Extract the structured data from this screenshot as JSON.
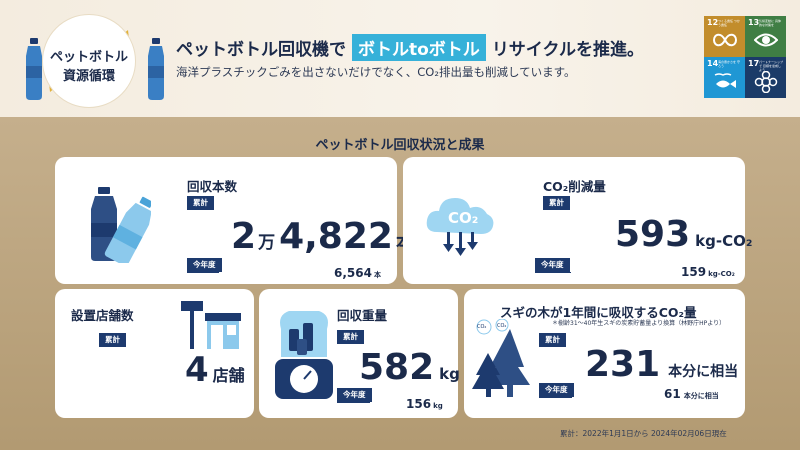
{
  "header": {
    "badge_line1": "ペットボトル",
    "badge_line2": "資源循環",
    "title_before": "ペットボトル回収機で",
    "title_highlight": "ボトルtoボトル",
    "title_after": "リサイクルを推進。",
    "subtitle": "海洋プラスチックごみを出さないだけでなく、CO₂排出量も削減しています。",
    "sdgs": [
      {
        "num": "12",
        "label": "つくる責任 つかう責任",
        "color": "#c28d2c",
        "icon": "infinity-icon"
      },
      {
        "num": "13",
        "label": "気候変動に 具体的な対策を",
        "color": "#3f7e44",
        "icon": "eye-icon"
      },
      {
        "num": "14",
        "label": "海の豊かさを 守ろう",
        "color": "#1f97d4",
        "icon": "fish-icon"
      },
      {
        "num": "17",
        "label": "パートナーシップで 目標を達成しよう",
        "color": "#1b3b68",
        "icon": "flower-icon"
      }
    ]
  },
  "section_title": "ペットボトル回収状況と成果",
  "cards": {
    "bottles": {
      "title": "回収本数",
      "tag_total": "累計",
      "tag_year": "今年度",
      "total_a": "2",
      "total_a_unit": "万",
      "total_b": "4,822",
      "total_unit": "本",
      "year_value": "6,564",
      "year_unit": "本"
    },
    "co2": {
      "title": "CO₂削減量",
      "icon_label": "CO₂",
      "tag_total": "累計",
      "tag_year": "今年度",
      "total_value": "593",
      "total_unit": "kg-CO₂",
      "year_value": "159",
      "year_unit": "kg-CO₂"
    },
    "stores": {
      "title": "設置店舗数",
      "tag_total": "累計",
      "value": "4",
      "unit": "店舗"
    },
    "weight": {
      "title": "回収重量",
      "tag_total": "累計",
      "tag_year": "今年度",
      "total_value": "582",
      "total_unit": "kg",
      "year_value": "156",
      "year_unit": "kg"
    },
    "trees": {
      "title": "スギの木が1年間に吸収するCO₂量",
      "note": "＊樹齢31〜40年生スギの炭素貯蓄量より換算（林野庁HPより）",
      "tag_total": "累計",
      "tag_year": "今年度",
      "total_value": "231",
      "total_unit": "本分に相当",
      "year_value": "61",
      "year_unit": "本分に相当",
      "co2_bubble": "CO₂"
    }
  },
  "footnote": "累計：2022年1月1日から 2024年02月06日現在",
  "colors": {
    "navy": "#1d3a6e",
    "accent": "#36b1d9",
    "header_bg": "#f4ecdf",
    "main_bg": "#c5af8c"
  }
}
